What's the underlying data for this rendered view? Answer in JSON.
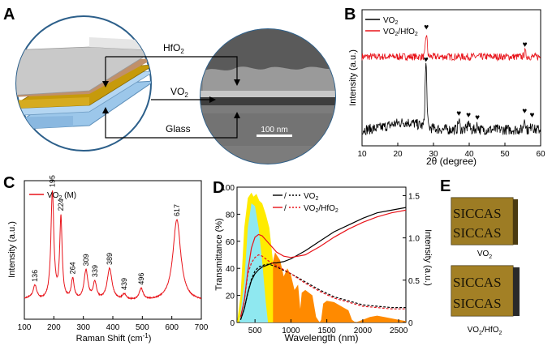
{
  "panel_letters": {
    "a": "A",
    "b": "B",
    "c": "C",
    "d": "D",
    "e": "E"
  },
  "panel_a": {
    "layers": [
      {
        "label": "HfO",
        "sub": "2"
      },
      {
        "label": "VO",
        "sub": "2"
      },
      {
        "label": "Glass",
        "sub": ""
      }
    ],
    "scale_bar": "100 nm",
    "colors": {
      "hfo2": "#c9c9c9",
      "interlayer": "#c0906a",
      "vo2": "#c69a0b",
      "glass": "#9cc7ea",
      "circle": "#2c5f8a"
    }
  },
  "panel_e": {
    "sample_text_line1": "SICCAS",
    "sample_text_line2": "SICCAS",
    "captions": [
      {
        "main": "VO",
        "sub": "2",
        "tail": ""
      },
      {
        "main": "VO",
        "sub": "2",
        "tail": "/HfO",
        "sub2": "2"
      }
    ]
  },
  "chart_data": [
    {
      "panel": "B",
      "type": "line",
      "xlabel": "2θ (degree)",
      "ylabel": "Intensity (a.u.)",
      "xlim": [
        10,
        60
      ],
      "xticks": [
        10,
        20,
        30,
        40,
        50,
        60
      ],
      "legend": [
        {
          "name": "VO2",
          "color": "#000000"
        },
        {
          "name": "VO2/HfO2",
          "color": "#e8131a"
        }
      ],
      "legend_placement": "top-left",
      "series": [
        {
          "name": "VO2/HfO2",
          "color": "#e8131a",
          "offset": 1.0,
          "noise": 0.09,
          "peaks": [
            {
              "x": 28.0,
              "h": 0.55
            },
            {
              "x": 55.6,
              "h": 0.12
            }
          ]
        },
        {
          "name": "VO2",
          "color": "#000000",
          "offset": 0.0,
          "noise": 0.13,
          "peaks": [
            {
              "x": 27.9,
              "h": 1.55
            },
            {
              "x": 37.1,
              "h": 0.22
            },
            {
              "x": 39.8,
              "h": 0.18
            },
            {
              "x": 42.3,
              "h": 0.12
            },
            {
              "x": 55.5,
              "h": 0.28
            },
            {
              "x": 57.6,
              "h": 0.18
            }
          ]
        }
      ],
      "markers": [
        {
          "x": 28.0,
          "series": "VO2/HfO2"
        },
        {
          "x": 55.6,
          "series": "VO2/HfO2"
        },
        {
          "x": 27.9,
          "series": "VO2"
        },
        {
          "x": 37.1,
          "series": "VO2"
        },
        {
          "x": 39.8,
          "series": "VO2"
        },
        {
          "x": 42.3,
          "series": "VO2"
        },
        {
          "x": 55.5,
          "series": "VO2"
        },
        {
          "x": 57.6,
          "series": "VO2"
        }
      ],
      "marker_symbol": "♥"
    },
    {
      "panel": "C",
      "type": "line",
      "xlabel": "Raman Shift (cm⁻¹)",
      "ylabel": "Intensity (a.u.)",
      "xlim": [
        100,
        700
      ],
      "xticks": [
        100,
        200,
        300,
        400,
        500,
        600,
        700
      ],
      "legend": [
        {
          "name": "VO2 (M)",
          "color": "#e8131a"
        }
      ],
      "legend_placement": "top-left",
      "peaks": [
        {
          "x": 136,
          "h": 0.12,
          "w": 8
        },
        {
          "x": 195,
          "h": 0.95,
          "w": 6
        },
        {
          "x": 224,
          "h": 0.72,
          "w": 5
        },
        {
          "x": 264,
          "h": 0.18,
          "w": 6
        },
        {
          "x": 309,
          "h": 0.26,
          "w": 8
        },
        {
          "x": 339,
          "h": 0.15,
          "w": 7
        },
        {
          "x": 389,
          "h": 0.28,
          "w": 10
        },
        {
          "x": 439,
          "h": 0.05,
          "w": 8
        },
        {
          "x": 496,
          "h": 0.1,
          "w": 8
        },
        {
          "x": 617,
          "h": 0.72,
          "w": 16
        }
      ],
      "peak_labels": [
        "136",
        "195",
        "224",
        "264",
        "309",
        "339",
        "389",
        "439",
        "496",
        "617"
      ]
    },
    {
      "panel": "D",
      "type": "line",
      "xlabel": "Wavelength (nm)",
      "ylabel": "Transmittance (%)",
      "y2label": "Intensity (a.u.)",
      "xlim": [
        250,
        2600
      ],
      "xticks": [
        500,
        1000,
        1500,
        2000,
        2500
      ],
      "ylim": [
        0,
        100
      ],
      "yticks": [
        0,
        20,
        40,
        60,
        80,
        100
      ],
      "y2lim": [
        0,
        1.6
      ],
      "y2ticks": [
        0,
        0.5,
        1.0,
        1.5
      ],
      "legend": [
        {
          "name": "VO2",
          "colors": [
            "#000000",
            "#000000"
          ]
        },
        {
          "name": "VO2/HfO2",
          "colors": [
            "#e8131a",
            "#e8131a"
          ]
        }
      ],
      "legend_placement": "top-center",
      "series": [
        {
          "name": "VO2 (solid)",
          "color": "#000000",
          "dash": false,
          "x": [
            300,
            350,
            400,
            450,
            500,
            550,
            600,
            650,
            700,
            750,
            800,
            900,
            1000,
            1200,
            1400,
            1600,
            1800,
            2000,
            2200,
            2400,
            2600
          ],
          "y": [
            2,
            10,
            22,
            31,
            36,
            39,
            41,
            42,
            43,
            44,
            44,
            45,
            47,
            53,
            60,
            67,
            72,
            77,
            81,
            83,
            85
          ]
        },
        {
          "name": "VO2/HfO2 (solid)",
          "color": "#e8131a",
          "dash": false,
          "x": [
            300,
            350,
            400,
            450,
            500,
            550,
            600,
            650,
            700,
            750,
            800,
            900,
            1000,
            1200,
            1400,
            1600,
            1800,
            2000,
            2200,
            2400,
            2600
          ],
          "y": [
            4,
            16,
            38,
            55,
            63,
            65,
            64,
            61,
            58,
            55,
            52,
            49,
            48,
            50,
            56,
            63,
            69,
            74,
            78,
            81,
            83
          ]
        },
        {
          "name": "VO2 (dash)",
          "color": "#000000",
          "dash": true,
          "x": [
            300,
            350,
            400,
            450,
            500,
            550,
            600,
            650,
            700,
            800,
            1000,
            1200,
            1400,
            1600,
            1800,
            2000,
            2200,
            2400,
            2600
          ],
          "y": [
            2,
            10,
            22,
            32,
            38,
            41,
            42,
            43,
            43,
            41,
            36,
            30,
            24,
            19,
            16,
            13,
            12,
            11,
            11
          ]
        },
        {
          "name": "VO2/HfO2 (dash)",
          "color": "#e8131a",
          "dash": true,
          "x": [
            300,
            350,
            400,
            450,
            500,
            550,
            600,
            650,
            700,
            800,
            1000,
            1200,
            1400,
            1600,
            1800,
            2000,
            2200,
            2400,
            2600
          ],
          "y": [
            4,
            16,
            36,
            44,
            48,
            50,
            49,
            47,
            45,
            42,
            36,
            29,
            23,
            18,
            15,
            12,
            11,
            10,
            10
          ]
        }
      ],
      "fills": [
        {
          "name": "visible",
          "color": "#ffeb00",
          "x": [
            250,
            300,
            350,
            400,
            450,
            480,
            520,
            560,
            600,
            650,
            700,
            750,
            800
          ],
          "y": [
            0,
            20,
            70,
            92,
            96,
            93,
            95,
            90,
            88,
            80,
            70,
            45,
            0
          ]
        },
        {
          "name": "uv",
          "color": "#8fe8f0",
          "x": [
            280,
            350,
            400,
            450,
            500,
            550,
            600,
            650,
            680
          ],
          "y": [
            0,
            30,
            70,
            88,
            86,
            70,
            45,
            15,
            0
          ]
        },
        {
          "name": "nir",
          "color": "#ff8a00",
          "x": [
            750,
            780,
            800,
            850,
            900,
            950,
            1000,
            1050,
            1100,
            1130,
            1150,
            1200,
            1250,
            1300,
            1350,
            1400,
            1420,
            1450,
            1500,
            1600,
            1700,
            1800,
            1850,
            1900,
            2000,
            2100,
            2200,
            2300,
            2400,
            2500,
            2600
          ],
          "y": [
            45,
            52,
            50,
            46,
            34,
            40,
            35,
            24,
            28,
            10,
            22,
            24,
            22,
            20,
            4,
            0,
            2,
            14,
            16,
            15,
            12,
            9,
            2,
            0,
            2,
            4,
            5,
            4,
            3,
            2,
            1
          ]
        }
      ]
    }
  ]
}
